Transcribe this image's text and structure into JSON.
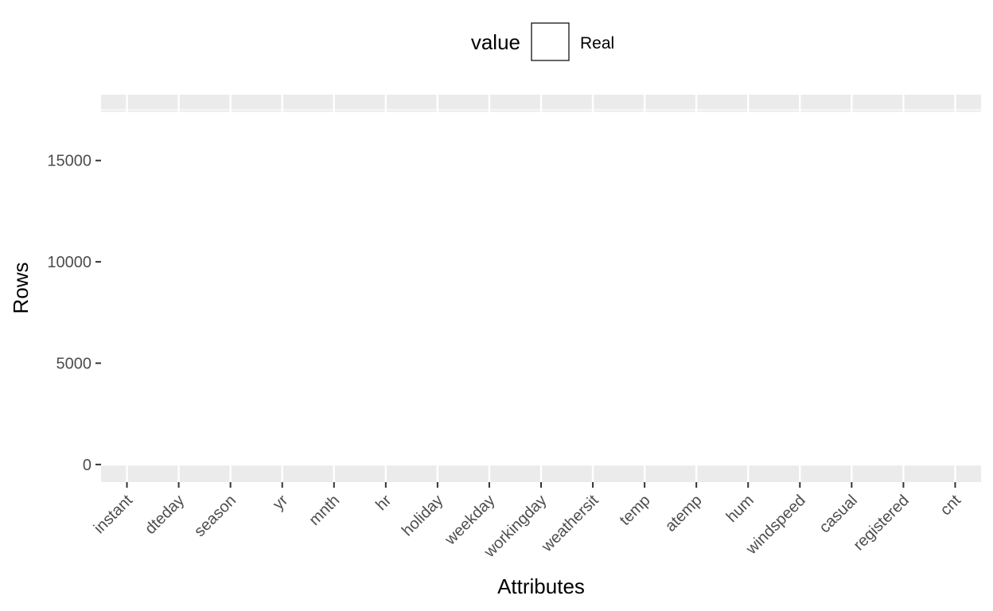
{
  "chart_data": {
    "type": "bar",
    "title": "",
    "xlabel": "Attributes",
    "ylabel": "Rows",
    "categories": [
      "instant",
      "dteday",
      "season",
      "yr",
      "mnth",
      "hr",
      "holiday",
      "weekday",
      "workingday",
      "weathersit",
      "temp",
      "atemp",
      "hum",
      "windspeed",
      "casual",
      "registered",
      "cnt"
    ],
    "series": [
      {
        "name": "Real",
        "values": [
          17379,
          17379,
          17379,
          17379,
          17379,
          17379,
          17379,
          17379,
          17379,
          17379,
          17379,
          17379,
          17379,
          17379,
          17379,
          17379,
          17379
        ]
      }
    ],
    "yticks": [
      0,
      5000,
      10000,
      15000
    ],
    "ytick_labels": [
      "0",
      "5000",
      "10000",
      "15000"
    ],
    "ylim": [
      -869,
      18248
    ],
    "grid": true,
    "legend": {
      "title": "value",
      "position": "top",
      "entries": [
        "Real"
      ]
    },
    "colors": {
      "panel": "#ebebeb",
      "grid": "#ffffff",
      "bar_fill": "#ffffff",
      "bar_outline": "#ffffff",
      "tick": "#333333",
      "legend_key_border": "#000000"
    }
  }
}
